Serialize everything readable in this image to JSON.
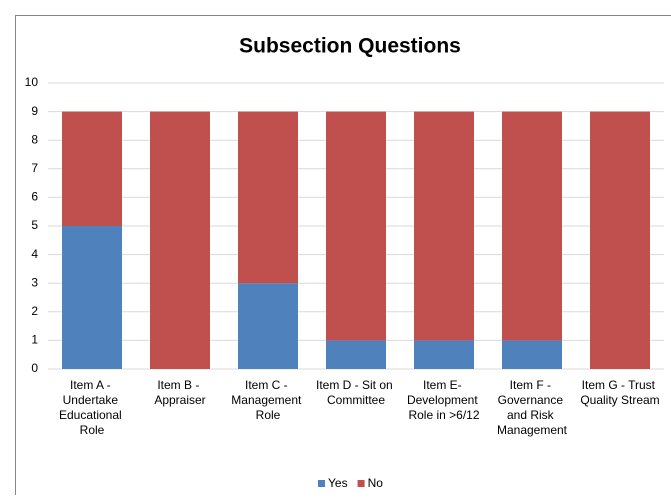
{
  "chart_data": {
    "type": "stacked_bar",
    "title": "Subsection Questions",
    "categories": [
      "Item A - Undertake Educational Role",
      "Item B - Appraiser",
      "Item C - Management Role",
      "Item D - Sit on Committee",
      "Item E- Development Role in >6/12",
      "Item F - Governance and Risk Management",
      "Item G - Trust Quality Stream"
    ],
    "series": [
      {
        "name": "Yes",
        "color": "#4f81bd",
        "values": [
          5,
          0,
          3,
          1,
          1,
          1,
          0
        ]
      },
      {
        "name": "No",
        "color": "#c0504d",
        "values": [
          4,
          9,
          6,
          8,
          8,
          8,
          9
        ]
      }
    ],
    "ylim": [
      0,
      10
    ],
    "yticks": [
      0,
      1,
      2,
      3,
      4,
      5,
      6,
      7,
      8,
      9,
      10
    ],
    "grid": true,
    "legend": "bottom"
  }
}
